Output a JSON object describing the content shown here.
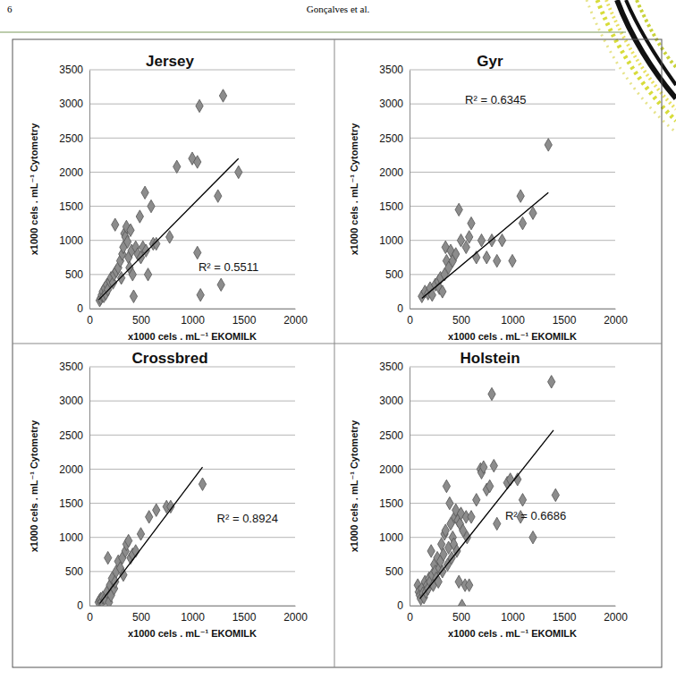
{
  "page": {
    "number": "6",
    "header": "Gonçalves et al."
  },
  "chart_data": [
    {
      "type": "scatter",
      "title": "Jersey",
      "x_label": "x1000 cels . mL⁻¹ EKOMILK",
      "y_label": "x1000 cels . mL⁻¹ Cytometry",
      "x": [
        100,
        110,
        120,
        130,
        140,
        150,
        160,
        170,
        180,
        200,
        210,
        230,
        240,
        250,
        260,
        280,
        300,
        310,
        320,
        330,
        340,
        350,
        360,
        370,
        380,
        390,
        400,
        410,
        420,
        430,
        450,
        470,
        490,
        500,
        520,
        540,
        550,
        570,
        600,
        620,
        650,
        780,
        850,
        1000,
        1050,
        1050,
        1070,
        1080,
        1250,
        1280,
        1300,
        1450
      ],
      "values": [
        120,
        150,
        200,
        250,
        180,
        300,
        220,
        350,
        280,
        400,
        450,
        380,
        500,
        1230,
        550,
        600,
        700,
        450,
        800,
        900,
        1100,
        1050,
        1200,
        980,
        750,
        600,
        1150,
        850,
        500,
        180,
        900,
        800,
        1350,
        750,
        900,
        1700,
        850,
        500,
        1500,
        950,
        950,
        1050,
        2080,
        2200,
        2150,
        820,
        2970,
        200,
        1650,
        350,
        3120,
        2000
      ],
      "trendline": {
        "x": [
          90,
          1450
        ],
        "values": [
          130,
          2200
        ]
      },
      "annotations": [
        {
          "text": "R² = 0.5511",
          "x": 1060,
          "y": 600
        }
      ],
      "xlim": [
        0,
        2000
      ],
      "ylim": [
        0,
        3500
      ],
      "xticks": [
        0,
        500,
        1000,
        1500,
        2000
      ],
      "yticks": [
        0,
        500,
        1000,
        1500,
        2000,
        2500,
        3000,
        3500
      ],
      "grid": true,
      "marker": "diamond",
      "color": "#8c8c8c"
    },
    {
      "type": "scatter",
      "title": "Gyr",
      "x_label": "x1000 cels . mL⁻¹ EKOMILK",
      "y_label": "x1000 cels . mL⁻¹ Cytometry",
      "x": [
        120,
        150,
        180,
        200,
        220,
        250,
        280,
        290,
        300,
        320,
        340,
        350,
        360,
        380,
        400,
        420,
        450,
        480,
        500,
        550,
        580,
        600,
        650,
        700,
        750,
        800,
        850,
        900,
        1000,
        1080,
        1100,
        1200,
        1350
      ],
      "values": [
        180,
        250,
        220,
        300,
        200,
        350,
        400,
        300,
        450,
        250,
        500,
        900,
        700,
        600,
        850,
        700,
        800,
        1450,
        1000,
        900,
        1050,
        1250,
        750,
        1000,
        750,
        1000,
        700,
        1000,
        700,
        1650,
        1250,
        1400,
        2400
      ],
      "trendline": {
        "x": [
          120,
          1350
        ],
        "values": [
          150,
          1700
        ]
      },
      "annotations": [
        {
          "text": "R² = 0.6345",
          "x": 540,
          "y": 3050
        }
      ],
      "xlim": [
        0,
        2000
      ],
      "ylim": [
        0,
        3500
      ],
      "xticks": [
        0,
        500,
        1000,
        1500,
        2000
      ],
      "yticks": [
        0,
        500,
        1000,
        1500,
        2000,
        2500,
        3000,
        3500
      ],
      "grid": true,
      "marker": "diamond",
      "color": "#8c8c8c"
    },
    {
      "type": "scatter",
      "title": "Crossbred",
      "x_label": "x1000 cels . mL⁻¹ EKOMILK",
      "y_label": "x1000 cels . mL⁻¹ Cytometry",
      "x": [
        90,
        100,
        110,
        120,
        130,
        150,
        170,
        180,
        190,
        200,
        210,
        220,
        240,
        250,
        260,
        280,
        300,
        320,
        330,
        350,
        360,
        380,
        400,
        420,
        450,
        500,
        580,
        650,
        750,
        790,
        1100
      ],
      "values": [
        50,
        80,
        100,
        60,
        120,
        100,
        200,
        700,
        50,
        300,
        150,
        400,
        250,
        350,
        500,
        650,
        550,
        700,
        450,
        800,
        900,
        950,
        700,
        750,
        800,
        1050,
        1300,
        1400,
        1450,
        1450,
        1780
      ],
      "trendline": {
        "x": [
          100,
          1100
        ],
        "values": [
          30,
          2030
        ]
      },
      "annotations": [
        {
          "text": "R² = 0.8924",
          "x": 1240,
          "y": 1270
        }
      ],
      "xlim": [
        0,
        2000
      ],
      "ylim": [
        0,
        3500
      ],
      "xticks": [
        0,
        500,
        1000,
        1500,
        2000
      ],
      "yticks": [
        0,
        500,
        1000,
        1500,
        2000,
        2500,
        3000,
        3500
      ],
      "grid": true,
      "marker": "diamond",
      "color": "#8c8c8c"
    },
    {
      "type": "scatter",
      "title": "Holstein",
      "x_label": "x1000 cels . mL⁻¹ EKOMILK",
      "y_label": "x1000 cels . mL⁻¹ Cytometry",
      "x": [
        80,
        90,
        100,
        110,
        120,
        130,
        140,
        150,
        160,
        170,
        180,
        190,
        200,
        210,
        220,
        230,
        240,
        250,
        260,
        270,
        280,
        290,
        300,
        310,
        320,
        330,
        340,
        350,
        360,
        370,
        380,
        390,
        400,
        410,
        420,
        430,
        440,
        450,
        460,
        470,
        480,
        490,
        500,
        510,
        520,
        540,
        550,
        560,
        580,
        600,
        650,
        690,
        700,
        720,
        750,
        780,
        800,
        820,
        850,
        950,
        980,
        1050,
        1080,
        1100,
        1200,
        1380,
        1420
      ],
      "values": [
        300,
        200,
        150,
        100,
        250,
        180,
        120,
        350,
        200,
        300,
        250,
        400,
        350,
        800,
        450,
        300,
        600,
        500,
        400,
        700,
        350,
        550,
        650,
        900,
        500,
        750,
        1050,
        1100,
        1750,
        600,
        850,
        1500,
        1200,
        700,
        1000,
        900,
        1300,
        1400,
        800,
        1250,
        350,
        1200,
        1350,
        0,
        1100,
        300,
        1300,
        1000,
        300,
        1300,
        1550,
        2000,
        1950,
        2030,
        1700,
        1750,
        3100,
        2050,
        1200,
        1800,
        1850,
        1850,
        1300,
        1550,
        1000,
        3280,
        1620
      ],
      "trendline": {
        "x": [
          100,
          1400
        ],
        "values": [
          100,
          2570
        ]
      },
      "annotations": [
        {
          "text": "R² = 0.6686",
          "x": 930,
          "y": 1310
        }
      ],
      "xlim": [
        0,
        2000
      ],
      "ylim": [
        0,
        3500
      ],
      "xticks": [
        0,
        500,
        1000,
        1500,
        2000
      ],
      "yticks": [
        0,
        500,
        1000,
        1500,
        2000,
        2500,
        3000,
        3500
      ],
      "grid": true,
      "marker": "diamond",
      "color": "#8c8c8c"
    }
  ]
}
